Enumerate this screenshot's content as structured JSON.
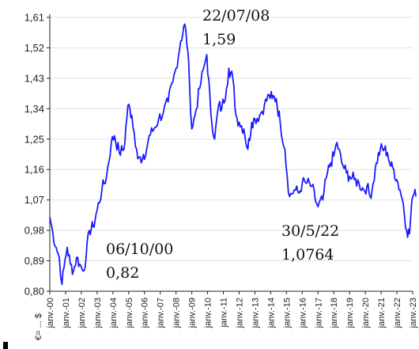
{
  "chart_data": {
    "type": "line",
    "title": "",
    "xlabel": "",
    "ylabel": "",
    "unit_label": "€= ... $",
    "ylim": [
      0.8,
      1.61
    ],
    "yticks": [
      "0,80",
      "0,89",
      "0,98",
      "1,07",
      "1,16",
      "1,25",
      "1,34",
      "1,43",
      "1,52",
      "1,61"
    ],
    "ytick_values": [
      0.8,
      0.89,
      0.98,
      1.07,
      1.16,
      1.25,
      1.34,
      1.43,
      1.52,
      1.61
    ],
    "xticks": [
      "janv.-00",
      "janv.-01",
      "janv.-02",
      "janv.-03",
      "janv.-04",
      "janv.-05",
      "janv.-06",
      "janv.-07",
      "janv.-08",
      "janv.-09",
      "janv.-10",
      "janv.-11",
      "janv.-12",
      "janv.-13",
      "janv.-14",
      "janv.-15",
      "janv.-16",
      "janv.-17",
      "janv.-18",
      "janv.-19",
      "janv.-20",
      "janv.-21",
      "janv.-22",
      "janv.-23"
    ],
    "xlim": [
      2000.0,
      2023.0
    ],
    "grid": "horizontal",
    "line_color": "#1a1aff",
    "series": [
      {
        "name": "",
        "x": [
          2000.0,
          2000.2,
          2000.4,
          2000.6,
          2000.77,
          2000.9,
          2001.1,
          2001.3,
          2001.5,
          2001.7,
          2001.9,
          2002.1,
          2002.3,
          2002.5,
          2002.75,
          2003.0,
          2003.3,
          2003.6,
          2003.9,
          2004.1,
          2004.4,
          2004.7,
          2004.95,
          2005.2,
          2005.5,
          2005.8,
          2006.0,
          2006.3,
          2006.6,
          2006.9,
          2007.2,
          2007.5,
          2007.8,
          2008.0,
          2008.3,
          2008.56,
          2008.75,
          2008.85,
          2009.0,
          2009.2,
          2009.5,
          2009.8,
          2009.95,
          2010.2,
          2010.45,
          2010.7,
          2010.9,
          2011.2,
          2011.35,
          2011.6,
          2011.8,
          2012.0,
          2012.3,
          2012.55,
          2012.8,
          2013.0,
          2013.3,
          2013.6,
          2013.9,
          2014.1,
          2014.35,
          2014.6,
          2014.9,
          2015.05,
          2015.2,
          2015.5,
          2015.8,
          2016.0,
          2016.3,
          2016.6,
          2016.9,
          2017.0,
          2017.3,
          2017.6,
          2017.8,
          2018.0,
          2018.2,
          2018.5,
          2018.8,
          2019.0,
          2019.3,
          2019.6,
          2019.9,
          2020.1,
          2020.3,
          2020.5,
          2020.7,
          2020.95,
          2021.2,
          2021.4,
          2021.6,
          2021.8,
          2022.0,
          2022.2,
          2022.4,
          2022.62,
          2022.8,
          2022.95,
          2023.1,
          2023.2
        ],
        "y": [
          1.02,
          0.97,
          0.93,
          0.9,
          0.82,
          0.87,
          0.93,
          0.88,
          0.86,
          0.9,
          0.88,
          0.86,
          0.9,
          0.98,
          0.99,
          1.04,
          1.1,
          1.14,
          1.24,
          1.26,
          1.21,
          1.22,
          1.35,
          1.32,
          1.22,
          1.18,
          1.19,
          1.26,
          1.28,
          1.31,
          1.33,
          1.36,
          1.42,
          1.46,
          1.54,
          1.59,
          1.51,
          1.42,
          1.28,
          1.32,
          1.4,
          1.47,
          1.5,
          1.33,
          1.25,
          1.35,
          1.34,
          1.4,
          1.46,
          1.43,
          1.32,
          1.3,
          1.28,
          1.22,
          1.3,
          1.31,
          1.32,
          1.35,
          1.38,
          1.37,
          1.37,
          1.3,
          1.22,
          1.14,
          1.08,
          1.1,
          1.09,
          1.12,
          1.12,
          1.11,
          1.06,
          1.05,
          1.07,
          1.15,
          1.18,
          1.2,
          1.24,
          1.18,
          1.15,
          1.14,
          1.13,
          1.12,
          1.1,
          1.11,
          1.08,
          1.12,
          1.18,
          1.22,
          1.22,
          1.21,
          1.17,
          1.16,
          1.13,
          1.1,
          1.06,
          0.98,
          0.97,
          1.07,
          1.09,
          1.08
        ]
      }
    ],
    "annotations": [
      {
        "line1": "22/07/08",
        "line2": "1,59"
      },
      {
        "line1": "06/10/00",
        "line2": "0,82"
      },
      {
        "line1": "30/5/22",
        "line2": "1,0764"
      }
    ]
  }
}
